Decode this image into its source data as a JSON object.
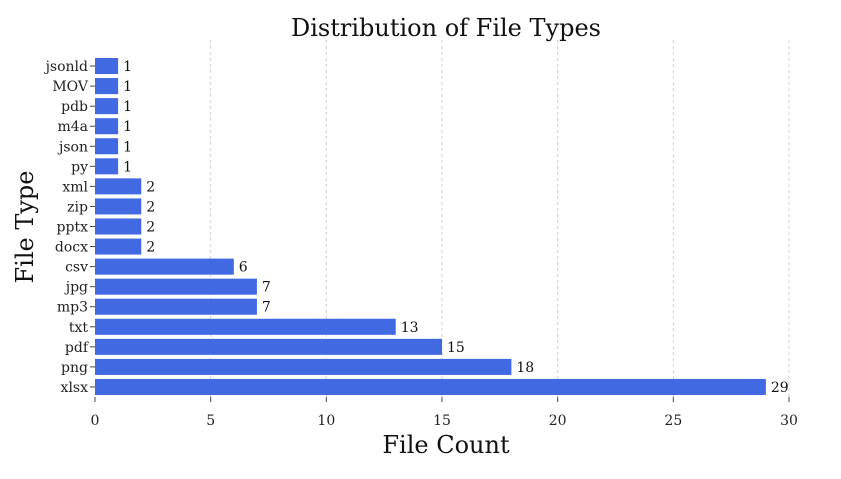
{
  "chart_data": {
    "type": "bar",
    "orientation": "horizontal",
    "title": "Distribution of File Types",
    "xlabel": "File Count",
    "ylabel": "File Type",
    "categories": [
      "jsonld",
      "MOV",
      "pdb",
      "m4a",
      "json",
      "py",
      "xml",
      "zip",
      "pptx",
      "docx",
      "csv",
      "jpg",
      "mp3",
      "txt",
      "pdf",
      "png",
      "xlsx"
    ],
    "values": [
      1,
      1,
      1,
      1,
      1,
      1,
      2,
      2,
      2,
      2,
      6,
      7,
      7,
      13,
      15,
      18,
      29
    ],
    "xlim": [
      0,
      30
    ],
    "xticks": [
      0,
      5,
      10,
      15,
      20,
      25,
      30
    ],
    "grid": "vertical",
    "bar_color": "#4169e1"
  }
}
